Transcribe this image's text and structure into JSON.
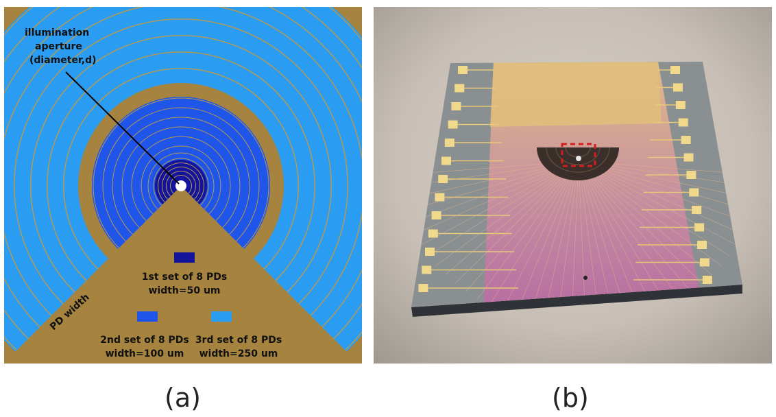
{
  "panel_a": {
    "aperture_label_lines": [
      "illumination",
      "aperture",
      "(diameter,d)"
    ],
    "pd_width_label": "PD width",
    "legend": [
      {
        "line1": "1st set of 8 PDs",
        "line2": "width=50 um",
        "color": "#13139c"
      },
      {
        "line1": "2nd set of 8 PDs",
        "line2": "width=100 um",
        "color": "#1f55e8"
      },
      {
        "line1": "3rd set of 8 PDs",
        "line2": "width=250 um",
        "color": "#2a9cf2"
      }
    ],
    "colors": {
      "background": "#a6843f",
      "gap": "#b49a55",
      "set1": "#13139c",
      "set2": "#1f55e8",
      "set3": "#2a9cf2"
    },
    "caption": "(a)"
  },
  "panel_b": {
    "description_icon": "photo-of-photodetector-chip",
    "caption": "(b)"
  }
}
